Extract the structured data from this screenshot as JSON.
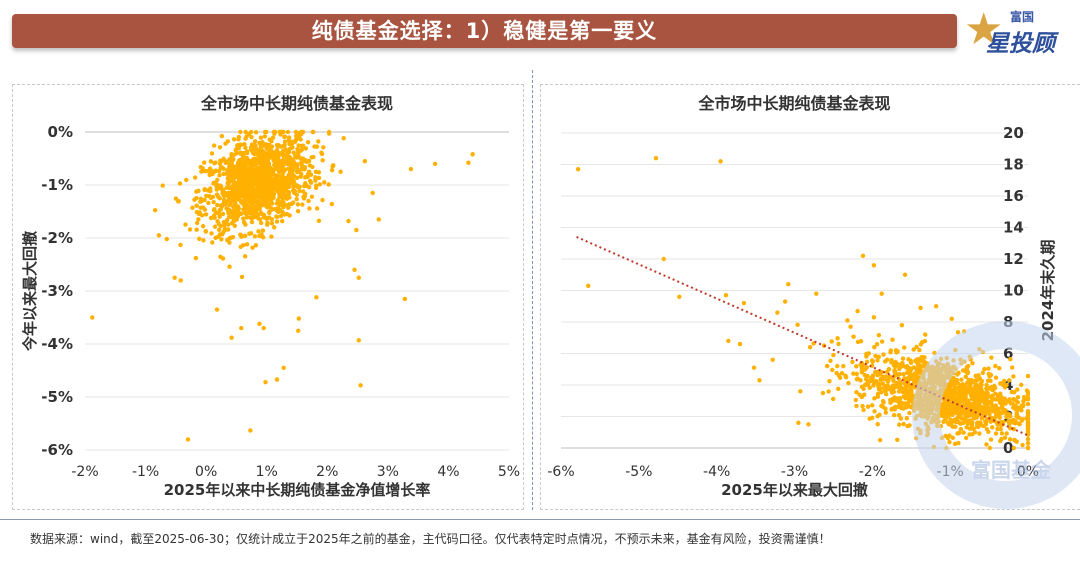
{
  "header": {
    "title": "纯债基金选择：1）稳健是第一要义",
    "logo_top": "富国",
    "logo_main": "星投顾"
  },
  "footer": {
    "note": "数据来源：wind，截至2025-06-30；仅统计成立于2025年之前的基金，主代码口径。仅代表特定时点情况，不预示未来，基金有风险，投资需谨慎！"
  },
  "watermark": {
    "text": "富国基金"
  },
  "colors": {
    "banner": "#a85440",
    "points": "#ffb000",
    "trend": "#c0392b",
    "watermark": "#c5d5ee"
  },
  "chart_data": [
    {
      "type": "scatter",
      "title": "全市场中长期纯债基金表现",
      "xlabel": "2025年以来中长期纯债基金净值增长率",
      "ylabel": "今年以来最大回撤",
      "xlim": [
        -0.02,
        0.05
      ],
      "ylim": [
        -0.06,
        0
      ],
      "xticks": [
        -0.02,
        -0.01,
        0,
        0.01,
        0.02,
        0.03,
        0.04,
        0.05
      ],
      "xtick_labels": [
        "-2%",
        "-1%",
        "0%",
        "1%",
        "2%",
        "3%",
        "4%",
        "5%"
      ],
      "yticks": [
        0,
        -0.01,
        -0.02,
        -0.03,
        -0.04,
        -0.05,
        -0.06
      ],
      "ytick_labels": [
        "0%",
        "-1%",
        "-2%",
        "-3%",
        "-4%",
        "-5%",
        "-6%"
      ],
      "grid": true,
      "legend": "none",
      "cluster": {
        "x_mean": 0.0085,
        "x_sd": 0.0045,
        "y_mean": -0.0095,
        "y_sd": 0.0045,
        "count": 1300,
        "corr": 0.35
      },
      "outliers": [
        [
          -0.0188,
          -0.035
        ],
        [
          -0.003,
          -0.058
        ],
        [
          0.0073,
          -0.0563
        ],
        [
          0.0117,
          -0.0467
        ],
        [
          0.0128,
          -0.0445
        ],
        [
          0.0255,
          -0.0478
        ],
        [
          0.0252,
          -0.0393
        ],
        [
          0.0328,
          -0.0315
        ],
        [
          0.0338,
          -0.007
        ],
        [
          0.0378,
          -0.006
        ],
        [
          0.0433,
          -0.0058
        ],
        [
          0.044,
          -0.0042
        ],
        [
          0.0095,
          -0.037
        ],
        [
          0.0182,
          -0.0312
        ],
        [
          0.0152,
          -0.0375
        ],
        [
          0.0252,
          -0.0275
        ],
        [
          0.0245,
          -0.026
        ],
        [
          0.0285,
          -0.0165
        ],
        [
          0.0275,
          -0.0115
        ],
        [
          0.0042,
          -0.0388
        ],
        [
          -0.0065,
          -0.0202
        ],
        [
          -0.0078,
          -0.0195
        ],
        [
          -0.0052,
          -0.0275
        ],
        [
          -0.0042,
          -0.028
        ],
        [
          0.0018,
          -0.0335
        ],
        [
          0.0058,
          -0.037
        ],
        [
          0.0088,
          -0.0362
        ],
        [
          0.0153,
          -0.0352
        ],
        [
          0.0248,
          -0.0185
        ],
        [
          0.0235,
          -0.0168
        ],
        [
          0.0195,
          -0.0095
        ],
        [
          0.0222,
          -0.0075
        ],
        [
          0.0262,
          -0.0055
        ],
        [
          0.0098,
          -0.0472
        ],
        [
          0.0208,
          -0.0072
        ]
      ]
    },
    {
      "type": "scatter",
      "title": "全市场中长期纯债基金表现",
      "xlabel": "2025年以来最大回撤",
      "ylabel": "2024年末久期",
      "xlim": [
        -0.06,
        0
      ],
      "ylim": [
        0,
        20
      ],
      "xticks": [
        -0.06,
        -0.05,
        -0.04,
        -0.03,
        -0.02,
        -0.01,
        0
      ],
      "xtick_labels": [
        "-6%",
        "-5%",
        "-4%",
        "-3%",
        "-2%",
        "-1%",
        "0%"
      ],
      "yticks": [
        0,
        2,
        4,
        6,
        8,
        10,
        12,
        14,
        16,
        18,
        20
      ],
      "ytick_labels": [
        "0",
        "2",
        "4",
        "6",
        "8",
        "10",
        "12",
        "14",
        "16",
        "18",
        "20"
      ],
      "grid": true,
      "legend": "none",
      "trendline": {
        "x": [
          -0.058,
          0
        ],
        "y": [
          13.4,
          0.8
        ]
      },
      "cluster": {
        "x_mean": -0.011,
        "x_sd": 0.0055,
        "y_mean": 3.4,
        "y_sd": 1.3,
        "count": 1300,
        "corr": -0.45
      },
      "outliers": [
        [
          -0.0578,
          17.7
        ],
        [
          -0.0565,
          10.3
        ],
        [
          -0.0478,
          18.4
        ],
        [
          -0.0395,
          18.2
        ],
        [
          -0.0468,
          12.0
        ],
        [
          -0.0448,
          9.6
        ],
        [
          -0.0388,
          9.7
        ],
        [
          -0.0385,
          6.8
        ],
        [
          -0.037,
          6.6
        ],
        [
          -0.0352,
          5.1
        ],
        [
          -0.0345,
          4.3
        ],
        [
          -0.0328,
          5.6
        ],
        [
          -0.0312,
          9.3
        ],
        [
          -0.0308,
          10.4
        ],
        [
          -0.0295,
          1.6
        ],
        [
          -0.0282,
          1.5
        ],
        [
          -0.028,
          6.4
        ],
        [
          -0.0262,
          6.5
        ],
        [
          -0.0258,
          5.2
        ],
        [
          -0.025,
          5.9
        ],
        [
          -0.0232,
          8.1
        ],
        [
          -0.0212,
          12.2
        ],
        [
          -0.0198,
          11.6
        ],
        [
          -0.0188,
          9.8
        ],
        [
          -0.0158,
          11.0
        ],
        [
          -0.0138,
          8.9
        ],
        [
          -0.0118,
          9.0
        ],
        [
          -0.0098,
          8.2
        ],
        [
          -0.0082,
          7.4
        ],
        [
          -0.0058,
          6.1
        ],
        [
          -0.0198,
          8.3
        ],
        [
          -0.0228,
          7.7
        ],
        [
          -0.0162,
          7.8
        ],
        [
          -0.0132,
          7.2
        ],
        [
          -0.0042,
          5.2
        ],
        [
          -0.0272,
          9.8
        ],
        [
          -0.0215,
          5.3
        ],
        [
          -0.0365,
          9.2
        ],
        [
          -0.0322,
          8.6
        ],
        [
          -0.019,
          0.5
        ]
      ]
    }
  ]
}
